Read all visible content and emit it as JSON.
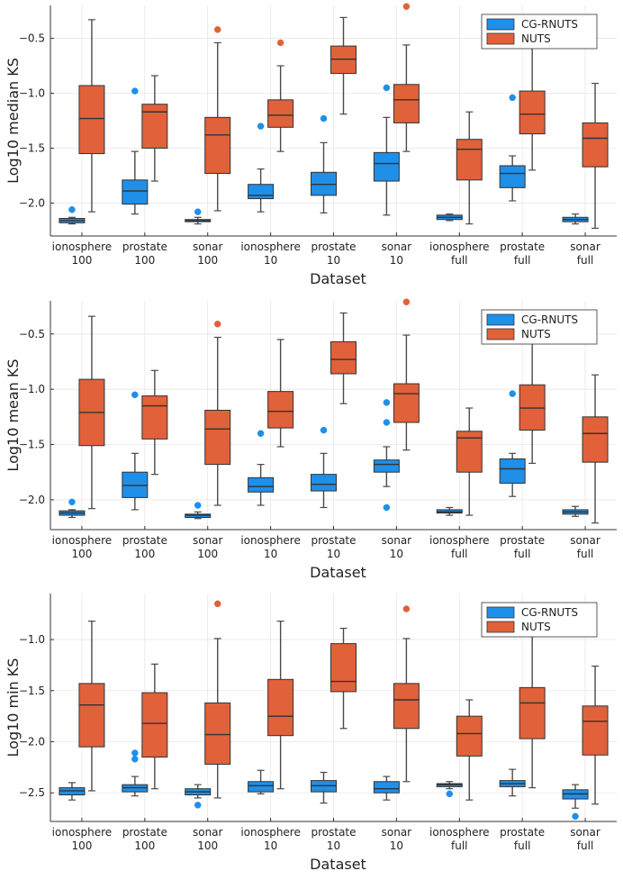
{
  "colors": {
    "cg_rnuts": "#1f8fe8",
    "nuts": "#e0613a",
    "whisker": "#4a4a4a",
    "grid": "#e6e6e6"
  },
  "chart_data": [
    {
      "type": "box",
      "xlabel": "Dataset",
      "ylabel": "Log10 median KS",
      "ylim": [
        -2.3,
        -0.2
      ],
      "yticks": [
        -2.0,
        -1.5,
        -1.0,
        -0.5
      ],
      "ytick_labels": [
        "−2.0",
        "−1.5",
        "−1.0",
        "−0.5"
      ],
      "categories": [
        {
          "line1": "ionosphere",
          "line2": "100"
        },
        {
          "line1": "prostate",
          "line2": "100"
        },
        {
          "line1": "sonar",
          "line2": "100"
        },
        {
          "line1": "ionosphere",
          "line2": "10"
        },
        {
          "line1": "prostate",
          "line2": "10"
        },
        {
          "line1": "sonar",
          "line2": "10"
        },
        {
          "line1": "ionosphere",
          "line2": "full"
        },
        {
          "line1": "prostate",
          "line2": "full"
        },
        {
          "line1": "sonar",
          "line2": "full"
        }
      ],
      "legend": {
        "position": "top-right",
        "entries": [
          "CG-RNUTS",
          "NUTS"
        ]
      },
      "series": [
        {
          "name": "CG-RNUTS",
          "boxes": [
            {
              "lo": -2.19,
              "q1": -2.18,
              "med": -2.16,
              "q3": -2.14,
              "hi": -2.13,
              "outliers": [
                -2.06
              ]
            },
            {
              "lo": -2.1,
              "q1": -2.01,
              "med": -1.89,
              "q3": -1.79,
              "hi": -1.53,
              "outliers": [
                -0.98
              ]
            },
            {
              "lo": -2.19,
              "q1": -2.17,
              "med": -2.16,
              "q3": -2.15,
              "hi": -2.13,
              "outliers": [
                -2.08
              ]
            },
            {
              "lo": -2.08,
              "q1": -1.96,
              "med": -1.93,
              "q3": -1.83,
              "hi": -1.69,
              "outliers": [
                -1.3
              ]
            },
            {
              "lo": -2.09,
              "q1": -1.93,
              "med": -1.83,
              "q3": -1.72,
              "hi": -1.45,
              "outliers": [
                -1.23
              ]
            },
            {
              "lo": -2.11,
              "q1": -1.8,
              "med": -1.64,
              "q3": -1.54,
              "hi": -1.22,
              "outliers": [
                -0.95
              ]
            },
            {
              "lo": -2.16,
              "q1": -2.15,
              "med": -2.13,
              "q3": -2.11,
              "hi": -2.1,
              "outliers": []
            },
            {
              "lo": -1.98,
              "q1": -1.86,
              "med": -1.73,
              "q3": -1.66,
              "hi": -1.57,
              "outliers": [
                -1.04
              ]
            },
            {
              "lo": -2.19,
              "q1": -2.17,
              "med": -2.15,
              "q3": -2.13,
              "hi": -2.1,
              "outliers": []
            }
          ]
        },
        {
          "name": "NUTS",
          "boxes": [
            {
              "lo": -2.08,
              "q1": -1.55,
              "med": -1.23,
              "q3": -0.93,
              "hi": -0.33,
              "outliers": []
            },
            {
              "lo": -1.8,
              "q1": -1.5,
              "med": -1.17,
              "q3": -1.1,
              "hi": -0.84,
              "outliers": []
            },
            {
              "lo": -2.07,
              "q1": -1.73,
              "med": -1.38,
              "q3": -1.22,
              "hi": -0.54,
              "outliers": [
                -0.42
              ]
            },
            {
              "lo": -1.53,
              "q1": -1.31,
              "med": -1.2,
              "q3": -1.06,
              "hi": -0.75,
              "outliers": [
                -0.54
              ]
            },
            {
              "lo": -1.19,
              "q1": -0.82,
              "med": -0.69,
              "q3": -0.57,
              "hi": -0.31,
              "outliers": []
            },
            {
              "lo": -1.53,
              "q1": -1.27,
              "med": -1.06,
              "q3": -0.92,
              "hi": -0.56,
              "outliers": [
                -0.21
              ]
            },
            {
              "lo": -2.19,
              "q1": -1.79,
              "med": -1.51,
              "q3": -1.42,
              "hi": -1.17,
              "outliers": []
            },
            {
              "lo": -1.7,
              "q1": -1.37,
              "med": -1.19,
              "q3": -0.98,
              "hi": -0.5,
              "outliers": []
            },
            {
              "lo": -2.23,
              "q1": -1.67,
              "med": -1.41,
              "q3": -1.27,
              "hi": -0.91,
              "outliers": []
            }
          ]
        }
      ]
    },
    {
      "type": "box",
      "xlabel": "Dataset",
      "ylabel": "Log10 mean KS",
      "ylim": [
        -2.27,
        -0.2
      ],
      "yticks": [
        -2.0,
        -1.5,
        -1.0,
        -0.5
      ],
      "ytick_labels": [
        "−2.0",
        "−1.5",
        "−1.0",
        "−0.5"
      ],
      "categories": [
        {
          "line1": "ionosphere",
          "line2": "100"
        },
        {
          "line1": "prostate",
          "line2": "100"
        },
        {
          "line1": "sonar",
          "line2": "100"
        },
        {
          "line1": "ionosphere",
          "line2": "10"
        },
        {
          "line1": "prostate",
          "line2": "10"
        },
        {
          "line1": "sonar",
          "line2": "10"
        },
        {
          "line1": "ionosphere",
          "line2": "full"
        },
        {
          "line1": "prostate",
          "line2": "full"
        },
        {
          "line1": "sonar",
          "line2": "full"
        }
      ],
      "legend": {
        "position": "top-right",
        "entries": [
          "CG-RNUTS",
          "NUTS"
        ]
      },
      "series": [
        {
          "name": "CG-RNUTS",
          "boxes": [
            {
              "lo": -2.16,
              "q1": -2.14,
              "med": -2.12,
              "q3": -2.1,
              "hi": -2.09,
              "outliers": [
                -2.02
              ]
            },
            {
              "lo": -2.09,
              "q1": -1.98,
              "med": -1.87,
              "q3": -1.75,
              "hi": -1.58,
              "outliers": [
                -1.05
              ]
            },
            {
              "lo": -2.17,
              "q1": -2.16,
              "med": -2.14,
              "q3": -2.13,
              "hi": -2.11,
              "outliers": [
                -2.05
              ]
            },
            {
              "lo": -2.05,
              "q1": -1.93,
              "med": -1.88,
              "q3": -1.8,
              "hi": -1.68,
              "outliers": [
                -1.4
              ]
            },
            {
              "lo": -2.07,
              "q1": -1.92,
              "med": -1.86,
              "q3": -1.77,
              "hi": -1.58,
              "outliers": [
                -1.37
              ]
            },
            {
              "lo": -1.88,
              "q1": -1.75,
              "med": -1.68,
              "q3": -1.64,
              "hi": -1.52,
              "outliers": [
                -1.12,
                -1.3,
                -2.07
              ]
            },
            {
              "lo": -2.14,
              "q1": -2.12,
              "med": -2.11,
              "q3": -2.09,
              "hi": -2.07,
              "outliers": []
            },
            {
              "lo": -1.97,
              "q1": -1.85,
              "med": -1.72,
              "q3": -1.63,
              "hi": -1.58,
              "outliers": [
                -1.04
              ]
            },
            {
              "lo": -2.15,
              "q1": -2.13,
              "med": -2.11,
              "q3": -2.09,
              "hi": -2.06,
              "outliers": []
            }
          ]
        },
        {
          "name": "NUTS",
          "boxes": [
            {
              "lo": -2.08,
              "q1": -1.51,
              "med": -1.21,
              "q3": -0.91,
              "hi": -0.34,
              "outliers": []
            },
            {
              "lo": -1.77,
              "q1": -1.45,
              "med": -1.15,
              "q3": -1.06,
              "hi": -0.83,
              "outliers": []
            },
            {
              "lo": -2.05,
              "q1": -1.68,
              "med": -1.36,
              "q3": -1.19,
              "hi": -0.53,
              "outliers": [
                -0.41
              ]
            },
            {
              "lo": -1.52,
              "q1": -1.35,
              "med": -1.2,
              "q3": -1.02,
              "hi": -0.55,
              "outliers": []
            },
            {
              "lo": -1.13,
              "q1": -0.86,
              "med": -0.73,
              "q3": -0.57,
              "hi": -0.31,
              "outliers": []
            },
            {
              "lo": -1.55,
              "q1": -1.3,
              "med": -1.04,
              "q3": -0.95,
              "hi": -0.51,
              "outliers": [
                -0.21
              ]
            },
            {
              "lo": -2.14,
              "q1": -1.75,
              "med": -1.44,
              "q3": -1.38,
              "hi": -1.17,
              "outliers": []
            },
            {
              "lo": -1.67,
              "q1": -1.37,
              "med": -1.17,
              "q3": -0.96,
              "hi": -0.5,
              "outliers": []
            },
            {
              "lo": -2.21,
              "q1": -1.66,
              "med": -1.4,
              "q3": -1.25,
              "hi": -0.87,
              "outliers": []
            }
          ]
        }
      ]
    },
    {
      "type": "box",
      "xlabel": "Dataset",
      "ylabel": "Log10 min KS",
      "ylim": [
        -2.78,
        -0.55
      ],
      "yticks": [
        -2.5,
        -2.0,
        -1.5,
        -1.0
      ],
      "ytick_labels": [
        "−2.5",
        "−2.0",
        "−1.5",
        "−1.0"
      ],
      "categories": [
        {
          "line1": "ionosphere",
          "line2": "100"
        },
        {
          "line1": "prostate",
          "line2": "100"
        },
        {
          "line1": "sonar",
          "line2": "100"
        },
        {
          "line1": "ionosphere",
          "line2": "10"
        },
        {
          "line1": "prostate",
          "line2": "10"
        },
        {
          "line1": "sonar",
          "line2": "10"
        },
        {
          "line1": "ionosphere",
          "line2": "full"
        },
        {
          "line1": "prostate",
          "line2": "full"
        },
        {
          "line1": "sonar",
          "line2": "full"
        }
      ],
      "legend": {
        "position": "top-right",
        "entries": [
          "CG-RNUTS",
          "NUTS"
        ]
      },
      "series": [
        {
          "name": "CG-RNUTS",
          "boxes": [
            {
              "lo": -2.57,
              "q1": -2.52,
              "med": -2.48,
              "q3": -2.45,
              "hi": -2.4,
              "outliers": []
            },
            {
              "lo": -2.53,
              "q1": -2.49,
              "med": -2.45,
              "q3": -2.42,
              "hi": -2.34,
              "outliers": [
                -2.11,
                -2.17
              ]
            },
            {
              "lo": -2.55,
              "q1": -2.52,
              "med": -2.49,
              "q3": -2.46,
              "hi": -2.42,
              "outliers": [
                -2.62
              ]
            },
            {
              "lo": -2.51,
              "q1": -2.49,
              "med": -2.43,
              "q3": -2.39,
              "hi": -2.28,
              "outliers": []
            },
            {
              "lo": -2.6,
              "q1": -2.49,
              "med": -2.43,
              "q3": -2.38,
              "hi": -2.3,
              "outliers": []
            },
            {
              "lo": -2.57,
              "q1": -2.5,
              "med": -2.46,
              "q3": -2.39,
              "hi": -2.34,
              "outliers": []
            },
            {
              "lo": -2.46,
              "q1": -2.44,
              "med": -2.42,
              "q3": -2.41,
              "hi": -2.39,
              "outliers": [
                -2.51
              ]
            },
            {
              "lo": -2.53,
              "q1": -2.44,
              "med": -2.41,
              "q3": -2.38,
              "hi": -2.27,
              "outliers": []
            },
            {
              "lo": -2.65,
              "q1": -2.56,
              "med": -2.51,
              "q3": -2.47,
              "hi": -2.42,
              "outliers": [
                -2.73
              ]
            }
          ]
        },
        {
          "name": "NUTS",
          "boxes": [
            {
              "lo": -2.48,
              "q1": -2.05,
              "med": -1.64,
              "q3": -1.43,
              "hi": -0.82,
              "outliers": []
            },
            {
              "lo": -2.46,
              "q1": -2.15,
              "med": -1.82,
              "q3": -1.52,
              "hi": -1.24,
              "outliers": []
            },
            {
              "lo": -2.55,
              "q1": -2.22,
              "med": -1.93,
              "q3": -1.62,
              "hi": -0.99,
              "outliers": [
                -0.65
              ]
            },
            {
              "lo": -2.46,
              "q1": -1.94,
              "med": -1.75,
              "q3": -1.39,
              "hi": -0.82,
              "outliers": []
            },
            {
              "lo": -1.87,
              "q1": -1.51,
              "med": -1.41,
              "q3": -1.04,
              "hi": -0.89,
              "outliers": []
            },
            {
              "lo": -2.39,
              "q1": -1.87,
              "med": -1.59,
              "q3": -1.43,
              "hi": -0.99,
              "outliers": [
                -0.7
              ]
            },
            {
              "lo": -2.57,
              "q1": -2.14,
              "med": -1.92,
              "q3": -1.75,
              "hi": -1.59,
              "outliers": []
            },
            {
              "lo": -2.45,
              "q1": -1.97,
              "med": -1.62,
              "q3": -1.47,
              "hi": -0.97,
              "outliers": []
            },
            {
              "lo": -2.61,
              "q1": -2.13,
              "med": -1.8,
              "q3": -1.65,
              "hi": -1.26,
              "outliers": []
            }
          ]
        }
      ]
    }
  ]
}
